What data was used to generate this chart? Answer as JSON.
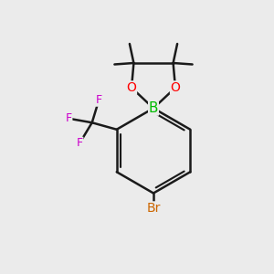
{
  "background_color": "#ebebeb",
  "bond_color": "#1a1a1a",
  "bond_width": 1.8,
  "atom_colors": {
    "B": "#00bb00",
    "O": "#ff0000",
    "F": "#cc00cc",
    "Br": "#cc6600",
    "C": "#000000"
  },
  "figsize": [
    3.0,
    3.0
  ],
  "dpi": 100
}
